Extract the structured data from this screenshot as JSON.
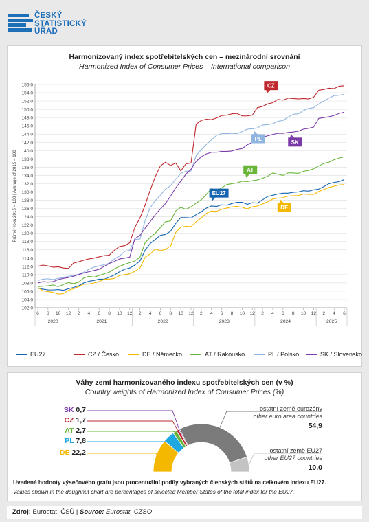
{
  "logo": {
    "line1": "ČESKÝ",
    "line2": "STATISTICKÝ",
    "line3": "ÚŘAD"
  },
  "line_chart": {
    "title_cz": "Harmonizovaný index spotřebitelských cen – mezinárodní srovnání",
    "title_en": "Harmonized Index of Consumer Prices – International comparison",
    "ylabel": "Průměr roku 2015 = 100 | Average of 2015 = 100",
    "legend": [
      "EU27",
      "CZ / Česko",
      "DE / Německo",
      "AT / Rakousko",
      "PL / Polsko",
      "SK / Slovensko"
    ]
  },
  "donut": {
    "title_cz": "Váhy zemí harmonizovaného indexu spotřebitelských cen (v %)",
    "title_en": "Country weights of Harmonized Index of Consumer Prices (%)",
    "note_cz": "Uvedené hodnoty výsečového grafu jsou procentuální podíly vybraných členských států na celkovém indexu EU27.",
    "note_en": "Values shown in the doughnut chart are percentages of selected Member States of the total index for the EU27.",
    "slices": [
      {
        "label": "SK",
        "value": "0,7",
        "color": "#7a3aa8"
      },
      {
        "label": "CZ",
        "value": "1,7",
        "color": "#c0272d"
      },
      {
        "label": "AT",
        "value": "2,7",
        "color": "#6ab63a"
      },
      {
        "label": "PL",
        "value": "7,8",
        "color": "#1fa7df"
      },
      {
        "label": "DE",
        "value": "22,2",
        "color": "#f5b800"
      }
    ],
    "euro_cz": "ostatní země eurozóny",
    "euro_en": "other euro area countries",
    "euro_value": "54,9",
    "eu27_cz": "ostatní země EU27",
    "eu27_en": "other EU27 countries",
    "eu27_value": "10,0"
  },
  "footer": {
    "label": "Zdroj:",
    "text": " Eurostat, ČSÚ | ",
    "label_en": "Source:",
    "text_en": " Eurostat, CZSO"
  },
  "chart_data": [
    {
      "type": "line",
      "title": "Harmonizovaný index spotřebitelských cen – mezinárodní srovnání",
      "subtitle": "Harmonized Index of Consumer Prices – International comparison",
      "ylabel": "Průměr roku 2015 = 100 | Average of 2015 = 100",
      "xlabel": "",
      "ylim": [
        102,
        156
      ],
      "ytick_step": 2,
      "x_month_ticks": [
        "6",
        "8",
        "10",
        "12",
        "2",
        "4",
        "6",
        "8",
        "10",
        "12",
        "2",
        "4",
        "6",
        "8",
        "10",
        "12",
        "2",
        "4",
        "6",
        "8",
        "10",
        "12",
        "2",
        "4",
        "6",
        "8",
        "10",
        "12",
        "2",
        "4",
        "6"
      ],
      "x_years": [
        "2020",
        "2021",
        "2022",
        "2023",
        "2024",
        "2025"
      ],
      "x": [
        "2020-06",
        "2020-07",
        "2020-08",
        "2020-09",
        "2020-10",
        "2020-11",
        "2020-12",
        "2021-01",
        "2021-02",
        "2021-03",
        "2021-04",
        "2021-05",
        "2021-06",
        "2021-07",
        "2021-08",
        "2021-09",
        "2021-10",
        "2021-11",
        "2021-12",
        "2022-01",
        "2022-02",
        "2022-03",
        "2022-04",
        "2022-05",
        "2022-06",
        "2022-07",
        "2022-08",
        "2022-09",
        "2022-10",
        "2022-11",
        "2022-12",
        "2023-01",
        "2023-02",
        "2023-03",
        "2023-04",
        "2023-05",
        "2023-06",
        "2023-07",
        "2023-08",
        "2023-09",
        "2023-10",
        "2023-11",
        "2023-12",
        "2024-01",
        "2024-02",
        "2024-03",
        "2024-04",
        "2024-05",
        "2024-06",
        "2024-07",
        "2024-08",
        "2024-09",
        "2024-10",
        "2024-11",
        "2024-12",
        "2025-01",
        "2025-02",
        "2025-03",
        "2025-04",
        "2025-05",
        "2025-06"
      ],
      "grid": true,
      "legend_position": "bottom",
      "series": [
        {
          "name": "EU27",
          "tag": "EU27",
          "color": "#1565b0",
          "values": [
            106.7,
            106.5,
            106.3,
            106.3,
            106.4,
            106.2,
            106.6,
            106.9,
            107.3,
            108.0,
            108.4,
            108.6,
            108.9,
            108.9,
            109.4,
            109.9,
            110.7,
            111.3,
            111.6,
            112.3,
            113.3,
            115.9,
            117.5,
            118.5,
            119.5,
            119.7,
            120.5,
            122.4,
            123.8,
            123.8,
            123.7,
            124.5,
            125.2,
            126.1,
            126.6,
            126.5,
            126.9,
            126.8,
            127.2,
            127.5,
            127.5,
            127.0,
            127.4,
            127.3,
            128.1,
            128.9,
            129.2,
            129.5,
            129.7,
            129.7,
            129.9,
            130.0,
            130.3,
            130.2,
            130.5,
            130.7,
            131.3,
            132.0,
            132.3,
            132.5,
            133.0
          ]
        },
        {
          "name": "CZ / Česko",
          "tag": "CZ",
          "color": "#c0272d",
          "values": [
            112.0,
            112.3,
            112.1,
            111.8,
            111.9,
            111.6,
            111.5,
            112.8,
            113.1,
            113.5,
            113.8,
            114.0,
            114.3,
            114.6,
            114.7,
            115.9,
            116.8,
            117.0,
            117.7,
            121.4,
            123.7,
            126.8,
            130.4,
            133.7,
            136.3,
            137.2,
            136.4,
            137.0,
            135.1,
            136.8,
            137.0,
            146.4,
            147.3,
            147.6,
            147.5,
            147.9,
            148.5,
            148.6,
            148.9,
            149.0,
            148.4,
            148.4,
            148.6,
            150.4,
            150.7,
            151.3,
            151.6,
            152.4,
            152.2,
            152.7,
            152.6,
            152.5,
            152.6,
            152.5,
            152.9,
            154.6,
            154.8,
            155.1,
            155.0,
            155.6,
            155.7
          ]
        },
        {
          "name": "DE / Německo",
          "tag": "DE",
          "color": "#f5b800",
          "values": [
            106.9,
            106.1,
            105.9,
            105.7,
            105.3,
            105.4,
            106.2,
            106.6,
            107.1,
            107.7,
            107.7,
            108.0,
            108.3,
            108.9,
            108.9,
            109.1,
            109.8,
            110.0,
            110.2,
            110.8,
            111.6,
            114.2,
            115.0,
            116.2,
            115.8,
            116.1,
            116.9,
            120.2,
            121.5,
            121.7,
            121.6,
            122.8,
            123.7,
            124.8,
            125.4,
            125.3,
            125.8,
            126.1,
            126.4,
            126.5,
            126.3,
            125.9,
            126.4,
            126.6,
            127.1,
            127.6,
            128.3,
            128.5,
            128.6,
            129.0,
            129.1,
            129.1,
            129.5,
            129.4,
            129.4,
            130.1,
            130.6,
            131.1,
            131.4,
            131.7,
            131.8
          ]
        },
        {
          "name": "AT / Rakousko",
          "tag": "AT",
          "color": "#6ab63a",
          "values": [
            107.1,
            107.2,
            107.3,
            107.5,
            107.1,
            107.6,
            108.1,
            107.8,
            108.2,
            109.2,
            109.6,
            109.4,
            109.8,
            110.2,
            110.6,
            111.4,
            112.0,
            112.5,
            112.9,
            113.3,
            114.2,
            117.7,
            119.0,
            120.0,
            121.4,
            122.8,
            123.0,
            125.4,
            126.3,
            125.8,
            126.4,
            127.3,
            128.1,
            129.4,
            130.8,
            130.4,
            131.0,
            131.8,
            132.0,
            132.2,
            132.6,
            132.5,
            132.7,
            132.9,
            133.3,
            133.8,
            134.6,
            134.3,
            134.0,
            134.6,
            134.6,
            134.5,
            135.0,
            135.2,
            135.6,
            136.3,
            136.9,
            137.2,
            137.8,
            138.2,
            138.5
          ]
        },
        {
          "name": "PL / Polsko",
          "tag": "PL",
          "color": "#8fb4df",
          "values": [
            108.6,
            108.9,
            109.0,
            108.8,
            109.1,
            109.3,
            109.6,
            109.8,
            110.1,
            110.6,
            111.3,
            111.8,
            112.1,
            112.4,
            112.8,
            113.8,
            114.5,
            115.6,
            115.9,
            118.5,
            118.6,
            123.0,
            126.2,
            127.9,
            129.2,
            130.7,
            131.5,
            133.1,
            134.5,
            135.0,
            135.1,
            138.8,
            140.2,
            141.5,
            142.6,
            143.7,
            144.1,
            144.1,
            144.2,
            144.1,
            144.6,
            145.2,
            145.3,
            145.5,
            146.2,
            146.3,
            146.5,
            147.1,
            147.3,
            148.1,
            148.8,
            148.9,
            149.7,
            150.2,
            150.4,
            151.3,
            152.0,
            152.7,
            153.3,
            153.4,
            153.6
          ]
        },
        {
          "name": "SK / Slovensko",
          "tag": "SK",
          "color": "#7a3aa8",
          "values": [
            108.0,
            108.3,
            108.2,
            108.3,
            108.8,
            109.1,
            109.3,
            109.6,
            110.0,
            110.4,
            110.7,
            111.0,
            111.3,
            112.0,
            112.7,
            113.2,
            113.8,
            114.0,
            114.2,
            118.7,
            119.5,
            121.2,
            122.8,
            124.5,
            125.9,
            127.2,
            129.0,
            131.0,
            132.6,
            134.3,
            135.5,
            137.4,
            138.5,
            139.2,
            139.6,
            139.6,
            139.8,
            139.8,
            139.9,
            140.3,
            140.5,
            141.4,
            142.0,
            142.7,
            143.2,
            143.6,
            143.9,
            144.2,
            144.2,
            144.4,
            144.5,
            144.7,
            145.2,
            145.4,
            145.7,
            147.8,
            148.0,
            148.2,
            148.5,
            149.0,
            149.3
          ]
        }
      ]
    },
    {
      "type": "pie",
      "variant": "half-doughnut",
      "title": "Váhy zemí harmonizovaného indexu spotřebitelských cen (v %)",
      "subtitle": "Country weights of Harmonized Index of Consumer Prices (%)",
      "categories": [
        "DE",
        "PL",
        "AT",
        "CZ",
        "SK",
        "ostatní země eurozóny",
        "ostatní země EU27"
      ],
      "values": [
        22.2,
        7.8,
        2.7,
        1.7,
        0.7,
        54.9,
        10.0
      ],
      "colors": [
        "#f5b800",
        "#1fa7df",
        "#6ab63a",
        "#c0272d",
        "#7a3aa8",
        "#7b7b7b",
        "#c3c3c3"
      ]
    }
  ]
}
